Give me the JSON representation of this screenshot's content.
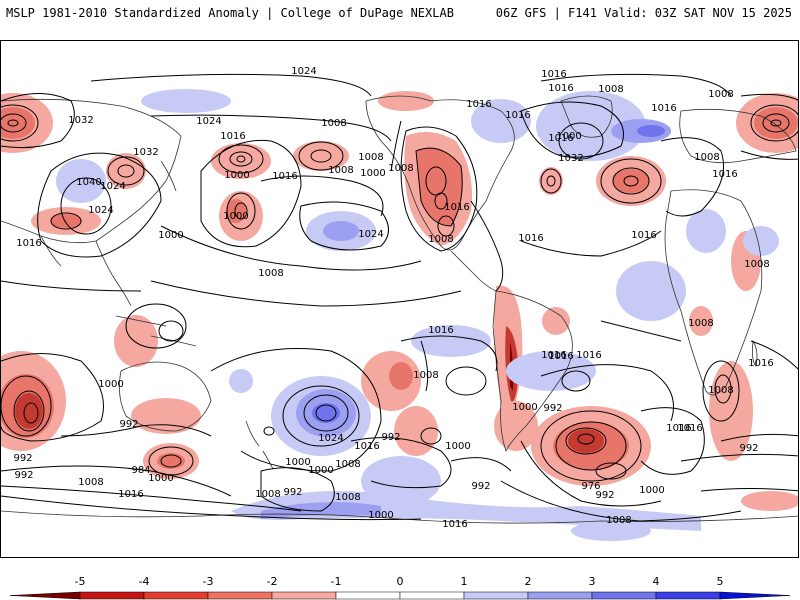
{
  "header": {
    "left_title": "MSLP 1981-2010 Standardized Anomaly | College of DuPage NEXLAB",
    "right_title": "06Z GFS | F141 Valid: 03Z SAT NOV 15 2025"
  },
  "map": {
    "isobar_labels": [
      "1024",
      "1016",
      "1016",
      "1008",
      "1032",
      "1024",
      "1016",
      "1008",
      "1032",
      "1040",
      "1024",
      "1024",
      "1016",
      "1000",
      "1016",
      "1008",
      "1000",
      "1008",
      "1000",
      "1000",
      "1016",
      "1016",
      "1008",
      "1024",
      "1016",
      "1000",
      "1016",
      "1008",
      "1016",
      "1032",
      "1008",
      "1008",
      "1016",
      "1016",
      "1016",
      "1008",
      "1008",
      "1008",
      "1016",
      "1016",
      "1016",
      "1008",
      "1016",
      "1016",
      "1000",
      "992",
      "1024",
      "1016",
      "1000",
      "1008",
      "992",
      "1000",
      "992",
      "984",
      "992",
      "992",
      "1008",
      "1016",
      "1000",
      "1008",
      "992",
      "1000",
      "1008",
      "992",
      "1000",
      "976",
      "992",
      "1000",
      "1008",
      "1016",
      "1016",
      "1008",
      "1000",
      "1016",
      "992"
    ],
    "colors": {
      "negative_strong": "#8b0000",
      "negative": "#e8756a",
      "positive": "#a9acf2",
      "positive_strong": "#3333ff"
    }
  },
  "colorbar": {
    "ticks": [
      "-5",
      "-4",
      "-3",
      "-2",
      "-1",
      "0",
      "1",
      "2",
      "3",
      "4",
      "5"
    ],
    "colors": [
      "#7a0000",
      "#c41414",
      "#e33d32",
      "#ef7363",
      "#f8aa9e",
      "#ffffff",
      "#ffffff",
      "#c8caf6",
      "#9da0f0",
      "#6f73ec",
      "#3a3fe6",
      "#0a10d8"
    ]
  }
}
